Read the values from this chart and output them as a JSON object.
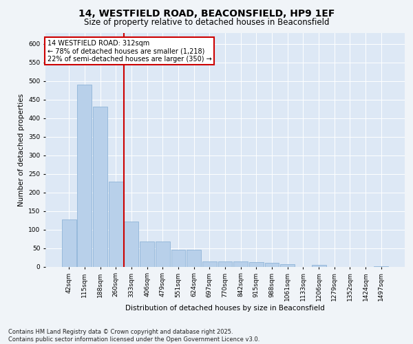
{
  "title": "14, WESTFIELD ROAD, BEACONSFIELD, HP9 1EF",
  "subtitle": "Size of property relative to detached houses in Beaconsfield",
  "xlabel": "Distribution of detached houses by size in Beaconsfield",
  "ylabel": "Number of detached properties",
  "categories": [
    "42sqm",
    "115sqm",
    "188sqm",
    "260sqm",
    "333sqm",
    "406sqm",
    "479sqm",
    "551sqm",
    "624sqm",
    "697sqm",
    "770sqm",
    "842sqm",
    "915sqm",
    "988sqm",
    "1061sqm",
    "1133sqm",
    "1206sqm",
    "1279sqm",
    "1352sqm",
    "1424sqm",
    "1497sqm"
  ],
  "values": [
    127,
    490,
    430,
    228,
    122,
    68,
    68,
    45,
    45,
    13,
    13,
    13,
    12,
    10,
    6,
    0,
    5,
    0,
    0,
    0,
    1
  ],
  "bar_color": "#b8d0ea",
  "bar_edge_color": "#8fb4d8",
  "vline_color": "#cc0000",
  "annotation_text": "14 WESTFIELD ROAD: 312sqm\n← 78% of detached houses are smaller (1,218)\n22% of semi-detached houses are larger (350) →",
  "annotation_box_color": "#ffffff",
  "annotation_box_edge": "#cc0000",
  "ylim": [
    0,
    630
  ],
  "yticks": [
    0,
    50,
    100,
    150,
    200,
    250,
    300,
    350,
    400,
    450,
    500,
    550,
    600
  ],
  "bg_color": "#dde8f5",
  "grid_color": "#ffffff",
  "footer": "Contains HM Land Registry data © Crown copyright and database right 2025.\nContains public sector information licensed under the Open Government Licence v3.0.",
  "title_fontsize": 10,
  "subtitle_fontsize": 8.5,
  "xlabel_fontsize": 7.5,
  "ylabel_fontsize": 7.5,
  "tick_fontsize": 6.5,
  "footer_fontsize": 6
}
